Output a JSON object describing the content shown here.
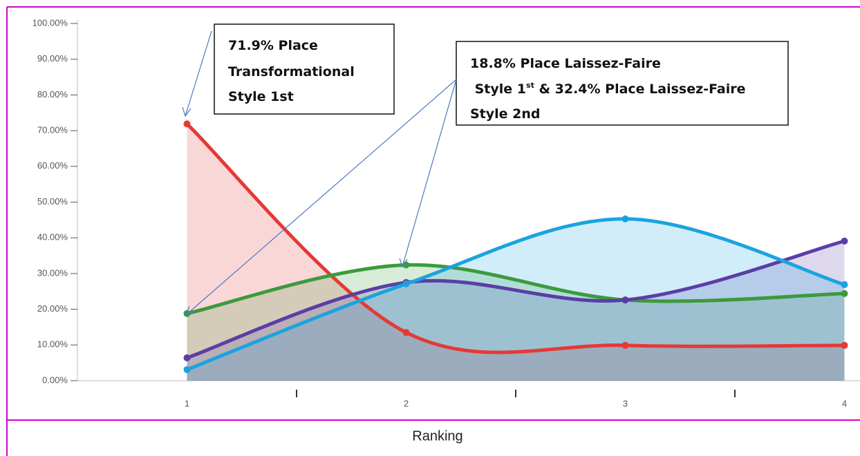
{
  "chart_data": {
    "type": "area",
    "x_label": "Ranking",
    "categories": [
      "1",
      "2",
      "3",
      "4"
    ],
    "series": [
      {
        "color": "#e53935",
        "values": [
          71.9,
          13.5,
          9.9,
          9.9
        ]
      },
      {
        "color": "#3c9a3c",
        "values": [
          18.8,
          32.4,
          22.6,
          24.4
        ]
      },
      {
        "color": "#5a3ea6",
        "values": [
          6.4,
          27.5,
          22.6,
          39.1
        ]
      },
      {
        "color": "#1aa3e0",
        "values": [
          3.1,
          27.1,
          45.3,
          26.9
        ]
      }
    ],
    "smooth": true,
    "ylim": [
      0,
      100
    ],
    "yticks": [
      {
        "value": 0,
        "label": "0.00%"
      },
      {
        "value": 10,
        "label": "10.00%"
      },
      {
        "value": 20,
        "label": "20.00%"
      },
      {
        "value": 30,
        "label": "30.00%"
      },
      {
        "value": 40,
        "label": "40.00%"
      },
      {
        "value": 50,
        "label": "50.00%"
      },
      {
        "value": 60,
        "label": "60.00%"
      },
      {
        "value": 70,
        "label": "70.00%"
      },
      {
        "value": 80,
        "label": "80.00%"
      },
      {
        "value": 90,
        "label": "90.00%"
      },
      {
        "value": 100,
        "label": "100.00%"
      }
    ],
    "annotations": [
      {
        "lines": [
          "71.9% Place",
          "Transformational",
          "Style 1st"
        ]
      },
      {
        "lines": [
          "18.8% Place Laissez-Faire",
          " Style 1",
          "st",
          " & 32.4% Place Laissez-Faire",
          "Style 2nd"
        ]
      }
    ]
  }
}
